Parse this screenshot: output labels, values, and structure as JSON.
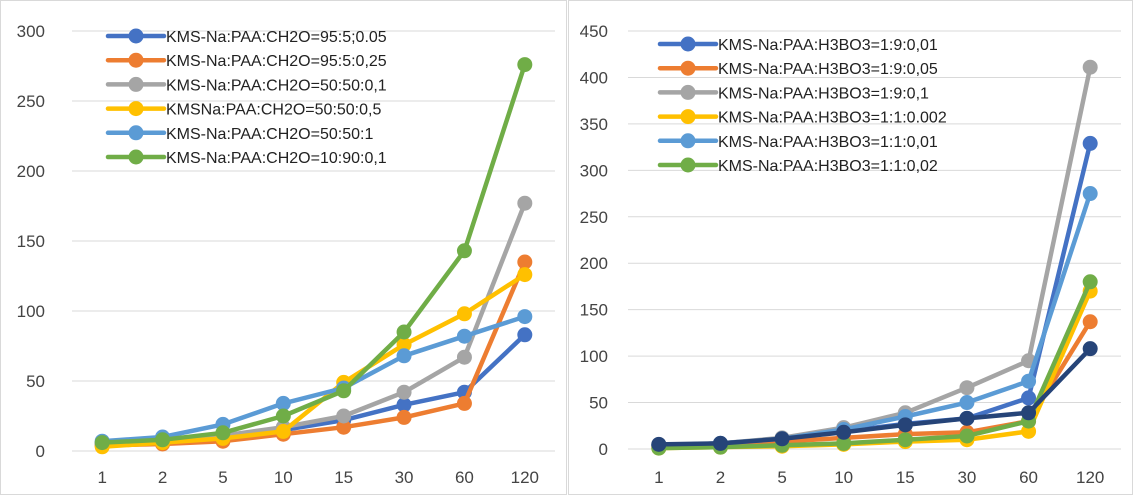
{
  "chart_data": [
    {
      "type": "line",
      "categories": [
        "1",
        "2",
        "5",
        "10",
        "15",
        "30",
        "60",
        "120"
      ],
      "ylim": [
        0,
        300
      ],
      "yticks": [
        0,
        50,
        100,
        150,
        200,
        250,
        300
      ],
      "grid": true,
      "legend": "top-left",
      "series": [
        {
          "name": "KMS-Na:PAA:CH2O=95:5;0.05",
          "color": "#4472C4",
          "values": [
            5,
            7,
            10,
            15,
            22,
            33,
            42,
            83
          ]
        },
        {
          "name": "KMS-Na:PAA:CH2O=95:5:0,25",
          "color": "#ED7D31",
          "values": [
            4,
            5,
            7,
            12,
            17,
            24,
            34,
            135
          ]
        },
        {
          "name": "KMS-Na:PAA:CH2O=50:50:0,1",
          "color": "#A5A5A5",
          "values": [
            6,
            8,
            11,
            17,
            25,
            42,
            67,
            177
          ]
        },
        {
          "name": "KMSNa:PAA:CH2O=50:50:0,5",
          "color": "#FFC000",
          "values": [
            3,
            6,
            9,
            14,
            49,
            76,
            98,
            126
          ]
        },
        {
          "name": "KMS-Na:PAA:CH2O=50:50:1",
          "color": "#5B9BD5",
          "values": [
            7,
            10,
            19,
            34,
            45,
            68,
            82,
            96
          ]
        },
        {
          "name": "KMS-Na:PAA:CH2O=10:90:0,1",
          "color": "#70AD47",
          "values": [
            6,
            8,
            13,
            25,
            43,
            85,
            143,
            276
          ]
        }
      ]
    },
    {
      "type": "line",
      "categories": [
        "1",
        "2",
        "5",
        "10",
        "15",
        "30",
        "60",
        "120"
      ],
      "ylim": [
        0,
        450
      ],
      "yticks": [
        0,
        50,
        100,
        150,
        200,
        250,
        300,
        350,
        400,
        450
      ],
      "grid": true,
      "legend": "top-left",
      "series": [
        {
          "name": "KMS-Na:PAA:H3BO3=1:9:0,01",
          "color": "#4472C4",
          "values": [
            4,
            6,
            11,
            19,
            27,
            33,
            55,
            329
          ]
        },
        {
          "name": "KMS-Na:PAA:H3BO3=1:9:0,05",
          "color": "#ED7D31",
          "values": [
            3,
            4,
            8,
            12,
            16,
            18,
            30,
            137
          ]
        },
        {
          "name": "KMS-Na:PAA:H3BO3=1:9:0,1",
          "color": "#A5A5A5",
          "values": [
            4,
            6,
            12,
            23,
            39,
            66,
            95,
            411
          ]
        },
        {
          "name": "KMS-Na:PAA:H3BO3=1:1:0.002",
          "color": "#FFC000",
          "values": [
            1,
            2,
            3,
            5,
            8,
            10,
            19,
            170
          ]
        },
        {
          "name": "KMS-Na:PAA:H3BO3=1:1:0,01",
          "color": "#5B9BD5",
          "values": [
            4,
            6,
            11,
            21,
            35,
            50,
            73,
            275
          ]
        },
        {
          "name": "KMS-Na:PAA:H3BO3=1:1:0,02",
          "color": "#70AD47",
          "values": [
            1,
            2,
            4,
            6,
            10,
            14,
            30,
            180
          ]
        },
        {
          "color": "#264478",
          "values": [
            5,
            6,
            11,
            18,
            26,
            33,
            39,
            108
          ],
          "in_legend": false
        }
      ]
    }
  ]
}
